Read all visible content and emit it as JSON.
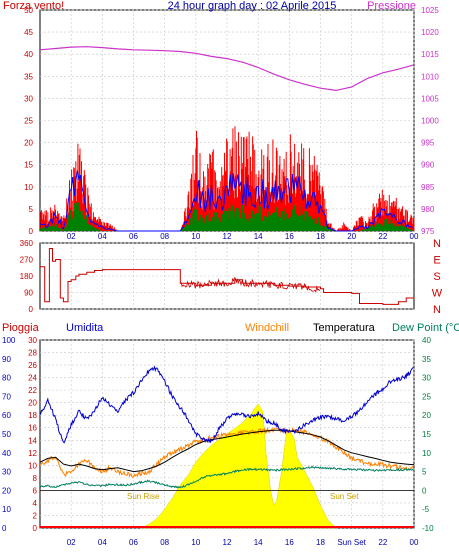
{
  "header": {
    "left_label": "Forza vento!",
    "center_title": "24 hour graph day : 02 Aprile 2015",
    "right_label": "Pressione"
  },
  "colors": {
    "wind": "#ff0000",
    "gust": "#0000ff",
    "wind_green": "#008000",
    "pressure": "#cc33cc",
    "direction": "#cc0000",
    "humidity": "#0000cc",
    "windchill": "#ff8000",
    "temperature": "#000000",
    "dewpoint": "#008060",
    "solar": "#ffff00",
    "axis_left_rain": "#cc0000",
    "axis_hum": "#0000cc",
    "axis_right": "#008040",
    "grid": "#c8c8c8"
  },
  "chart_data": [
    {
      "type": "line",
      "id": "wind_pressure",
      "x_ticks": [
        "02",
        "04",
        "06",
        "08",
        "10",
        "12",
        "14",
        "16",
        "18",
        "20",
        "22",
        "00"
      ],
      "left_axis": {
        "ticks": [
          0,
          5,
          10,
          15,
          20,
          25,
          30,
          35,
          40,
          45,
          50
        ],
        "ylim": [
          0,
          50
        ]
      },
      "right_axis": {
        "ticks": [
          975,
          980,
          985,
          990,
          995,
          1000,
          1005,
          1010,
          1015,
          1020,
          1025
        ],
        "ylim": [
          975,
          1025
        ]
      },
      "series": [
        {
          "name": "Pressione",
          "axis": "right",
          "x": [
            0,
            1,
            2,
            3,
            4,
            5,
            6,
            7,
            8,
            9,
            10,
            11,
            12,
            13,
            14,
            15,
            16,
            17,
            18,
            19,
            20,
            21,
            22,
            23,
            24
          ],
          "values": [
            1016.0,
            1016.3,
            1016.6,
            1016.7,
            1016.5,
            1016.2,
            1016.0,
            1015.9,
            1015.8,
            1015.6,
            1015.2,
            1014.5,
            1014.0,
            1013.2,
            1012.0,
            1010.5,
            1009.2,
            1008.2,
            1007.3,
            1006.8,
            1007.6,
            1009.5,
            1010.8,
            1011.6,
            1012.6
          ]
        },
        {
          "name": "wind_envelope",
          "axis": "left",
          "x": [
            0,
            0.5,
            1,
            1.5,
            2,
            2.5,
            3,
            3.5,
            4,
            4.5,
            5,
            6,
            7,
            8,
            9,
            9.5,
            10,
            10.5,
            11,
            11.5,
            12,
            12.5,
            13,
            13.5,
            14,
            14.5,
            15,
            15.5,
            16,
            16.5,
            17,
            17.5,
            18,
            18.5,
            19,
            19.5,
            20,
            20.5,
            21,
            21.5,
            22,
            22.5,
            23,
            23.5,
            24
          ],
          "values": [
            6,
            5,
            7,
            3,
            16,
            21,
            12,
            4,
            3,
            2,
            0,
            0,
            0,
            0,
            0,
            9,
            24,
            14,
            21,
            12,
            23,
            26,
            25,
            22,
            23,
            21,
            23,
            17,
            22,
            24,
            20,
            18,
            13,
            3,
            0,
            2,
            0,
            4,
            2,
            8,
            12,
            9,
            7,
            5,
            3
          ]
        },
        {
          "name": "gust",
          "axis": "left",
          "x": [
            0,
            0.5,
            1,
            1.5,
            2,
            2.5,
            3,
            3.5,
            4,
            5,
            8,
            9,
            9.5,
            10,
            10.5,
            11,
            11.5,
            12,
            12.5,
            13,
            13.5,
            14,
            14.5,
            15,
            15.5,
            16,
            16.5,
            17,
            17.5,
            18,
            18.5,
            19,
            20,
            20.5,
            21,
            21.5,
            22,
            22.5,
            23,
            23.5,
            24
          ],
          "values": [
            2,
            1,
            4,
            1,
            10,
            12,
            6,
            2,
            1,
            0,
            0,
            0,
            3,
            12,
            8,
            10,
            7,
            11,
            13,
            12,
            10,
            11,
            9,
            10,
            8,
            11,
            12,
            9,
            8,
            6,
            1,
            0,
            0,
            1,
            1,
            3,
            6,
            5,
            3,
            2,
            1
          ]
        },
        {
          "name": "wind_green",
          "axis": "left",
          "x": [
            0,
            0.5,
            1,
            1.5,
            2,
            2.5,
            3,
            3.5,
            4,
            5,
            8,
            9,
            9.5,
            10,
            10.5,
            11,
            11.5,
            12,
            12.5,
            13,
            13.5,
            14,
            14.5,
            15,
            15.5,
            16,
            16.5,
            17,
            17.5,
            18,
            18.5,
            19,
            20,
            20.5,
            21,
            21.5,
            22,
            22.5,
            23,
            23.5,
            24
          ],
          "values": [
            1,
            1,
            2,
            0,
            6,
            7,
            4,
            1,
            0,
            0,
            0,
            0,
            2,
            6,
            4,
            5,
            4,
            6,
            7,
            6,
            5,
            6,
            5,
            6,
            5,
            6,
            7,
            5,
            4,
            3,
            1,
            0,
            0,
            0,
            1,
            2,
            3,
            3,
            2,
            1,
            0
          ]
        }
      ]
    },
    {
      "type": "line",
      "id": "wind_direction",
      "x_ticks": [
        "02",
        "04",
        "06",
        "08",
        "10",
        "12",
        "14",
        "16",
        "18",
        "20",
        "22",
        "00"
      ],
      "left_axis": {
        "ticks": [
          0,
          90,
          180,
          270,
          360
        ],
        "ylim": [
          0,
          360
        ]
      },
      "right_axis": {
        "ticks": [
          "N",
          "E",
          "S",
          "W",
          "N"
        ]
      },
      "series": [
        {
          "name": "direction",
          "x": [
            0,
            0.3,
            0.6,
            0.8,
            1.0,
            1.3,
            1.5,
            1.8,
            2.0,
            2.3,
            2.5,
            3,
            3.5,
            4,
            5,
            6,
            7,
            8,
            8.9,
            9.0,
            10,
            11,
            12,
            12.5,
            13,
            14,
            15,
            16,
            17,
            18,
            18.2,
            19,
            20,
            20.5,
            21,
            22,
            23,
            23.5,
            24
          ],
          "values": [
            230,
            40,
            330,
            260,
            270,
            60,
            40,
            150,
            160,
            180,
            190,
            200,
            210,
            215,
            215,
            215,
            215,
            215,
            215,
            140,
            130,
            140,
            140,
            160,
            140,
            140,
            130,
            125,
            120,
            110,
            90,
            90,
            85,
            30,
            30,
            25,
            40,
            60,
            55
          ]
        }
      ]
    },
    {
      "type": "line",
      "id": "weather",
      "header_labels": {
        "rain": "Pioggia",
        "humidity": "Umidita",
        "windchill": "Windchill",
        "temperature": "Temperatura",
        "dewpoint": "Dew Point (°C"
      },
      "x_ticks": [
        "02",
        "04",
        "06",
        "08",
        "10",
        "12",
        "14",
        "16",
        "18",
        "Sun Set",
        "22",
        "00"
      ],
      "sunrise_label": "Sun Rise",
      "sunset_label": "Sun Set",
      "hum_axis": {
        "ticks": [
          0,
          10,
          20,
          30,
          40,
          50,
          60,
          70,
          80,
          90,
          100
        ],
        "ylim": [
          0,
          100
        ]
      },
      "rain_axis": {
        "ticks": [
          0,
          2,
          4,
          6,
          8,
          10,
          12,
          14,
          16,
          18,
          20,
          22,
          24,
          26,
          28,
          30
        ],
        "ylim": [
          0,
          30
        ]
      },
      "temp_axis": {
        "ticks": [
          -10,
          -5,
          0,
          5,
          10,
          15,
          20,
          25,
          30,
          35,
          40
        ],
        "ylim": [
          -10,
          40
        ]
      },
      "series": [
        {
          "name": "Umidita",
          "axis": "hum",
          "x": [
            0,
            0.5,
            1,
            1.5,
            2,
            2.5,
            3,
            3.5,
            4,
            4.5,
            5,
            5.5,
            6,
            6.5,
            7,
            7.5,
            8,
            8.5,
            9,
            9.5,
            10,
            10.5,
            11,
            11.5,
            12,
            12.5,
            13,
            13.5,
            14,
            14.5,
            15,
            15.5,
            16,
            16.5,
            17,
            17.5,
            18,
            18.5,
            19,
            19.5,
            20,
            20.5,
            21,
            21.5,
            22,
            22.5,
            23,
            23.5,
            24
          ],
          "values": [
            60,
            68,
            58,
            45,
            55,
            62,
            58,
            62,
            70,
            65,
            62,
            68,
            72,
            78,
            84,
            85,
            78,
            70,
            64,
            58,
            50,
            47,
            46,
            53,
            58,
            61,
            60,
            59,
            61,
            57,
            56,
            52,
            51,
            52,
            55,
            57,
            59,
            59,
            58,
            57,
            59,
            63,
            67,
            71,
            74,
            78,
            79,
            81,
            85
          ]
        },
        {
          "name": "Windchill",
          "axis": "temp",
          "x": [
            0,
            0.5,
            1,
            1.5,
            2,
            2.5,
            3,
            3.5,
            4,
            4.5,
            5,
            6,
            7,
            7.5,
            8,
            8.5,
            9,
            9.5,
            10,
            10.5,
            11,
            11.5,
            12,
            12.5,
            13,
            13.5,
            14,
            14.5,
            15,
            15.5,
            16,
            16.5,
            17,
            17.5,
            18,
            18.5,
            19,
            19.5,
            20,
            20.5,
            21,
            21.5,
            22,
            22.5,
            23,
            23.5,
            24
          ],
          "values": [
            7,
            8,
            9,
            4,
            5,
            7,
            8,
            6,
            5,
            6,
            5,
            4,
            5,
            7,
            9,
            10,
            11,
            12,
            13,
            13.5,
            14,
            14.5,
            14.8,
            15,
            15.3,
            15.5,
            15.7,
            15.9,
            16,
            16,
            15.9,
            15.8,
            15.5,
            15,
            14,
            13,
            11.5,
            10,
            8.5,
            7.8,
            7.2,
            7,
            6.8,
            6.5,
            6.2,
            6.0,
            5.8
          ]
        },
        {
          "name": "Temperatura",
          "axis": "temp",
          "x": [
            0,
            0.5,
            1,
            1.5,
            2,
            2.5,
            3,
            3.5,
            4,
            4.5,
            5,
            5.5,
            6,
            6.5,
            7,
            7.5,
            8,
            8.5,
            9,
            9.5,
            10,
            10.5,
            11,
            11.5,
            12,
            12.5,
            13,
            13.5,
            14,
            14.5,
            15,
            15.5,
            16,
            16.5,
            17,
            17.5,
            18,
            18.5,
            19,
            19.5,
            20,
            20.5,
            21,
            21.5,
            22,
            22.5,
            23,
            23.5,
            24
          ],
          "values": [
            7.5,
            8.5,
            8.8,
            7,
            6.5,
            7,
            6.5,
            5.8,
            5.5,
            5.8,
            6,
            5.5,
            5,
            5.2,
            5.8,
            6.5,
            7.5,
            8.8,
            10,
            11,
            12.2,
            13,
            13.5,
            13.8,
            14.2,
            14.6,
            15,
            15.3,
            15.6,
            15.8,
            16,
            16,
            15.8,
            15.5,
            15.2,
            14.8,
            14.2,
            13.2,
            12,
            10.8,
            10,
            9.5,
            9,
            8.5,
            8,
            7.5,
            7.2,
            7,
            6.8
          ]
        },
        {
          "name": "Dew Point",
          "axis": "temp",
          "x": [
            0,
            0.5,
            1,
            1.5,
            2,
            2.5,
            3,
            3.5,
            4,
            4.5,
            5,
            5.5,
            6,
            6.5,
            7,
            7.5,
            8,
            8.5,
            9,
            9.5,
            10,
            10.5,
            11,
            11.5,
            12,
            12.5,
            13,
            13.5,
            14,
            14.5,
            15,
            15.5,
            16,
            16.5,
            17,
            17.5,
            18,
            18.5,
            19,
            19.5,
            20,
            20.5,
            21,
            21.5,
            22,
            22.5,
            23,
            23.5,
            24
          ],
          "values": [
            1,
            1.2,
            0.8,
            1.5,
            2,
            2.2,
            1.5,
            1.3,
            1.2,
            1.6,
            1.5,
            1.4,
            1.8,
            2.2,
            2.5,
            2.0,
            1.5,
            1.0,
            0.8,
            1.5,
            2.5,
            3.5,
            4,
            4.2,
            4.5,
            5,
            5.4,
            5.6,
            5.6,
            5.5,
            5.3,
            5.5,
            5.6,
            5.8,
            5.9,
            6.2,
            6.0,
            5.9,
            5.8,
            5.7,
            5.5,
            5.6,
            5.4,
            5.3,
            5.3,
            5.5,
            5.4,
            5.5,
            5.6
          ]
        },
        {
          "name": "solar_fill",
          "axis": "hum",
          "x": [
            6.5,
            7,
            7.5,
            8,
            8.5,
            9,
            9.5,
            10,
            10.5,
            11,
            11.5,
            12,
            12.5,
            13,
            13.2,
            13.5,
            13.8,
            14,
            14.3,
            14.5,
            14.8,
            15,
            15.2,
            15.5,
            15.8,
            16,
            16.3,
            16.5,
            17,
            17.5,
            18,
            18.5,
            19
          ],
          "values": [
            0,
            2,
            5,
            10,
            16,
            23,
            28,
            35,
            40,
            44,
            47,
            50,
            53,
            56,
            58,
            60,
            64,
            66,
            62,
            40,
            20,
            12,
            15,
            30,
            50,
            52,
            48,
            38,
            30,
            22,
            12,
            4,
            0
          ]
        },
        {
          "name": "Pioggia",
          "axis": "rain",
          "x": [
            0,
            24
          ],
          "values": [
            0,
            0
          ]
        }
      ]
    }
  ]
}
